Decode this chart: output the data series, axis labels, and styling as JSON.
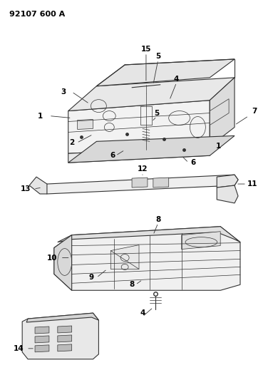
{
  "title_text": "92107 600 A",
  "bg_color": "#ffffff",
  "line_color": "#333333",
  "label_color": "#000000",
  "fig_width": 3.9,
  "fig_height": 5.33,
  "dpi": 100
}
